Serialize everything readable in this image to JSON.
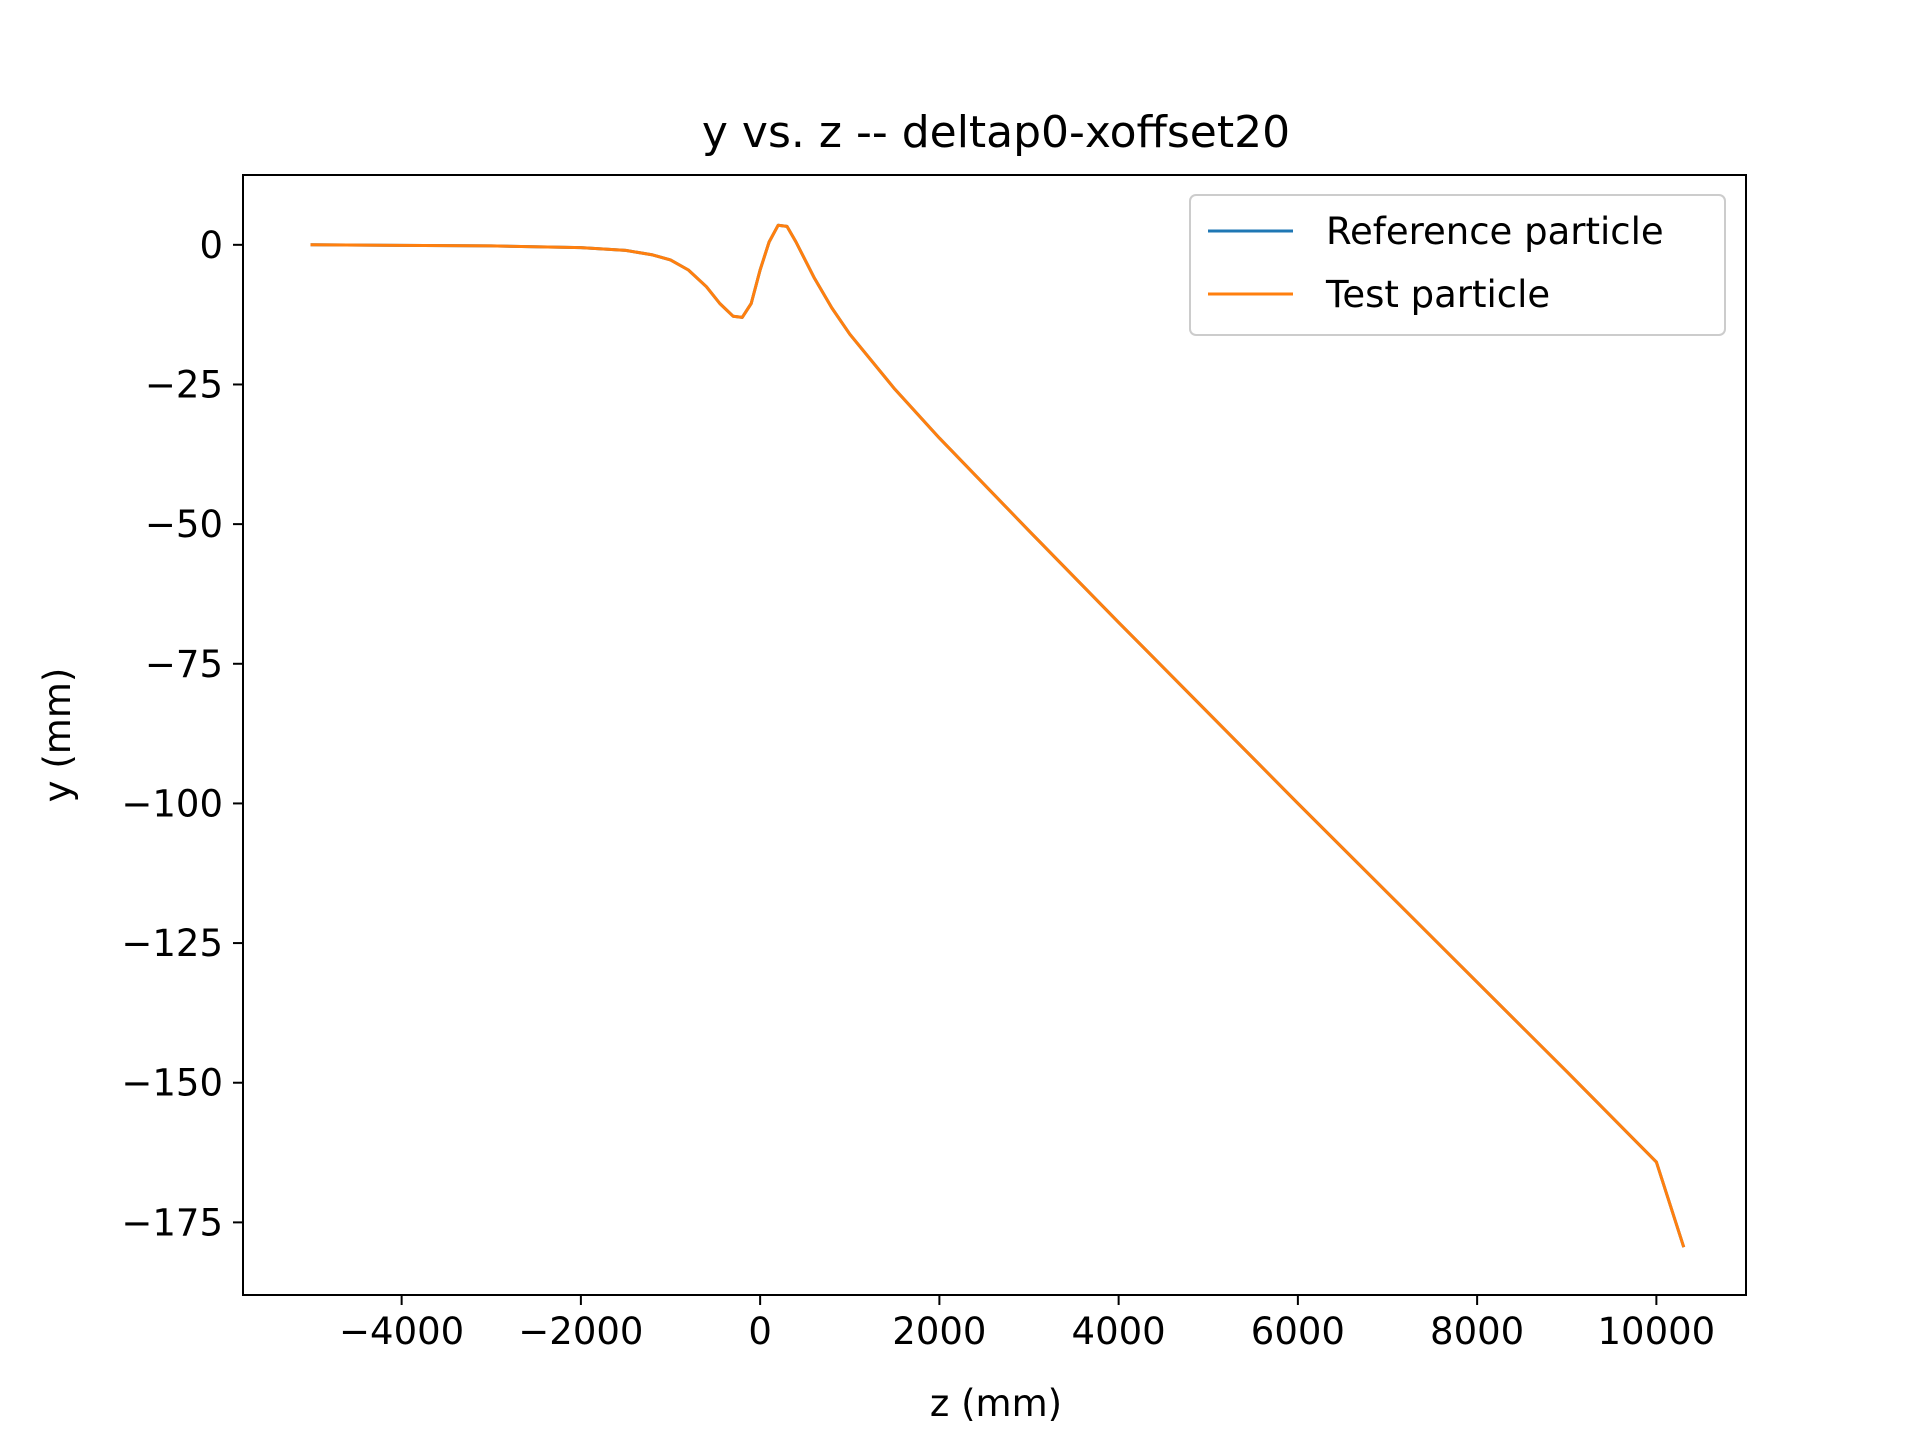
{
  "chart_data": {
    "type": "line",
    "title": "y vs. z -- deltap0-xoffset20",
    "xlabel": "z (mm)",
    "ylabel": "y (mm)",
    "xlim": [
      -5770,
      11000
    ],
    "ylim": [
      -188,
      12.5
    ],
    "xticks": [
      -4000,
      -2000,
      0,
      2000,
      4000,
      6000,
      8000,
      10000
    ],
    "xtick_labels": [
      "−4000",
      "−2000",
      "0",
      "2000",
      "4000",
      "6000",
      "8000",
      "10000"
    ],
    "yticks": [
      0,
      -25,
      -50,
      -75,
      -100,
      -125,
      -150,
      -175
    ],
    "ytick_labels": [
      "0",
      "−25",
      "−50",
      "−75",
      "−100",
      "−125",
      "−150",
      "−175"
    ],
    "grid": false,
    "legend": "top-right",
    "series": [
      {
        "name": "Reference particle",
        "color": "#1f77b4",
        "x": [
          -5000,
          -4000,
          -3000,
          -2000,
          -1500,
          -1200,
          -1000,
          -800,
          -600,
          -450,
          -300,
          -200,
          -100,
          0,
          100,
          200,
          300,
          400,
          600,
          800,
          1000,
          1500,
          2000,
          3000,
          4000,
          5000,
          6000,
          7000,
          8000,
          9000,
          10000,
          10300
        ],
        "y": [
          0,
          -0.1,
          -0.2,
          -0.5,
          -1.0,
          -1.8,
          -2.7,
          -4.5,
          -7.5,
          -10.5,
          -12.8,
          -13.0,
          -10.5,
          -4.5,
          0.5,
          3.5,
          3.3,
          0.5,
          -5.8,
          -11.3,
          -16.0,
          -25.8,
          -34.6,
          -51.2,
          -67.6,
          -83.8,
          -100.0,
          -116.0,
          -132.0,
          -148.0,
          -164.2,
          -179.2
        ]
      },
      {
        "name": "Test particle",
        "color": "#ff7f0e",
        "x": [
          -5000,
          -4000,
          -3000,
          -2000,
          -1500,
          -1200,
          -1000,
          -800,
          -600,
          -450,
          -300,
          -200,
          -100,
          0,
          100,
          200,
          300,
          400,
          600,
          800,
          1000,
          1500,
          2000,
          3000,
          4000,
          5000,
          6000,
          7000,
          8000,
          9000,
          10000,
          10300
        ],
        "y": [
          0,
          -0.1,
          -0.2,
          -0.5,
          -1.0,
          -1.8,
          -2.7,
          -4.5,
          -7.5,
          -10.5,
          -12.8,
          -13.0,
          -10.5,
          -4.5,
          0.5,
          3.5,
          3.3,
          0.5,
          -5.8,
          -11.3,
          -16.0,
          -25.8,
          -34.6,
          -51.2,
          -67.6,
          -83.8,
          -100.0,
          -116.0,
          -132.0,
          -148.0,
          -164.2,
          -179.2
        ]
      }
    ]
  }
}
